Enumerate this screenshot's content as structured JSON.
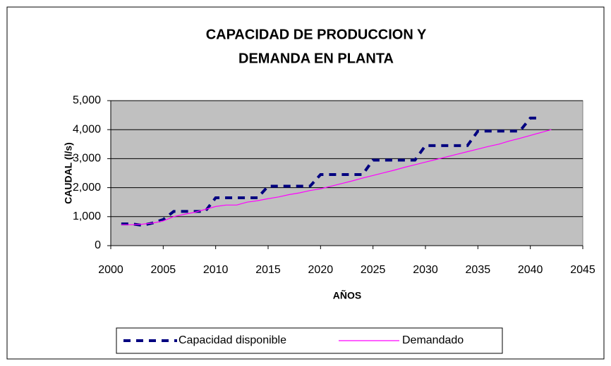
{
  "chart_data": {
    "type": "line",
    "title": [
      "CAPACIDAD DE PRODUCCION Y",
      "DEMANDA EN PLANTA"
    ],
    "x_label": "AÑOS",
    "y_label": "CAUDAL (l/s)",
    "x": [
      2001,
      2002,
      2003,
      2004,
      2005,
      2006,
      2007,
      2008,
      2009,
      2010,
      2011,
      2012,
      2013,
      2014,
      2015,
      2016,
      2017,
      2018,
      2019,
      2020,
      2021,
      2022,
      2023,
      2024,
      2025,
      2026,
      2027,
      2028,
      2029,
      2030,
      2031,
      2032,
      2033,
      2034,
      2035,
      2036,
      2037,
      2038,
      2039,
      2040,
      2041,
      2042
    ],
    "series": [
      {
        "name": "Capacidad disponible",
        "color": "#000080",
        "dashed": true,
        "values": [
          750,
          750,
          700,
          780,
          900,
          1180,
          1180,
          1180,
          1180,
          1650,
          1650,
          1650,
          1650,
          1650,
          2050,
          2050,
          2050,
          2050,
          2050,
          2450,
          2450,
          2450,
          2450,
          2450,
          2950,
          2950,
          2950,
          2950,
          2950,
          3450,
          3450,
          3450,
          3450,
          3450,
          3950,
          3950,
          3950,
          3950,
          3950,
          4400,
          4400,
          null
        ]
      },
      {
        "name": "Demandado",
        "color": "#ff00ff",
        "dashed": false,
        "values": [
          720,
          720,
          740,
          780,
          850,
          1000,
          1080,
          1150,
          1250,
          1350,
          1400,
          1400,
          1500,
          1550,
          1620,
          1680,
          1760,
          1820,
          1900,
          1960,
          2050,
          2140,
          2230,
          2330,
          2420,
          2510,
          2600,
          2700,
          2790,
          2880,
          2970,
          3060,
          3150,
          3240,
          3330,
          3420,
          3500,
          3610,
          3700,
          3800,
          3900,
          4000
        ]
      }
    ],
    "xlim": [
      2000,
      2045
    ],
    "xticks": [
      2000,
      2005,
      2010,
      2015,
      2020,
      2025,
      2030,
      2035,
      2040,
      2045
    ],
    "ylim": [
      0,
      5000
    ],
    "yticks": [
      0,
      {
        "value": 1000,
        "label": "1,000"
      },
      {
        "value": 2000,
        "label": "2,000"
      },
      {
        "value": 3000,
        "label": "3,000"
      },
      {
        "value": 4000,
        "label": "4,000"
      },
      {
        "value": 5000,
        "label": "5,000"
      }
    ],
    "grid": true,
    "legend": "bottom"
  }
}
